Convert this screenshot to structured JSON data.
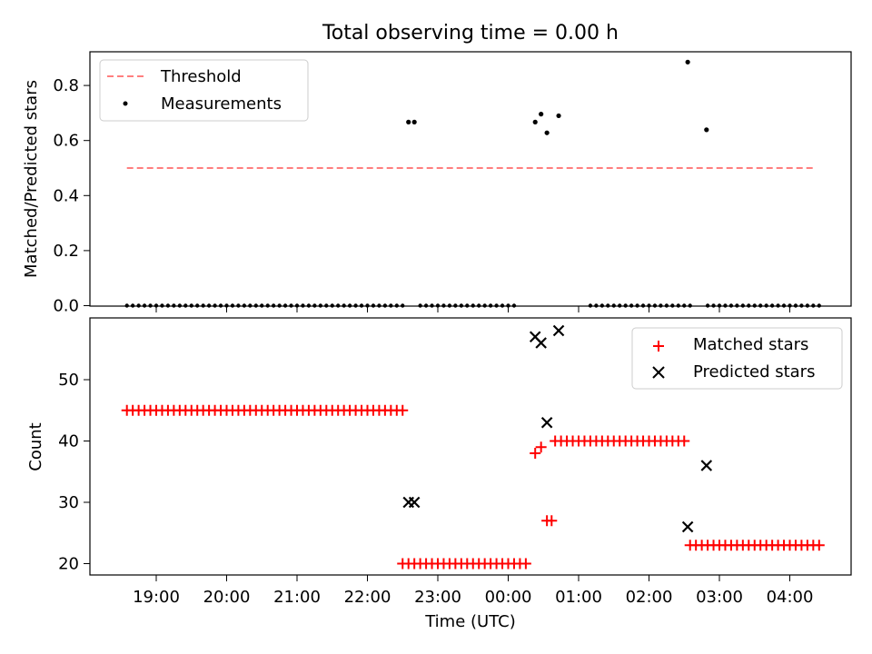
{
  "chart_data": [
    {
      "type": "scatter",
      "title": "Total observing time = 0.00 h",
      "xlabel": "",
      "ylabel": "Matched/Predicted stars",
      "ylim": [
        0,
        0.92
      ],
      "yticks": [
        0.0,
        0.2,
        0.4,
        0.6,
        0.8
      ],
      "ytick_labels": [
        "0.0",
        "0.2",
        "0.4",
        "0.6",
        "0.8"
      ],
      "legend_position": "top-left",
      "series": [
        {
          "name": "Threshold",
          "style": "dashed-line",
          "color": "#ff7f7f",
          "x": [
            "18:35",
            "04:20"
          ],
          "y": [
            0.5,
            0.5
          ]
        },
        {
          "name": "Measurements",
          "style": "dot",
          "color": "#000000",
          "zero_run_x": [
            "18:35",
            "22:30",
            "22:45",
            "00:05",
            "01:10",
            "02:35",
            "02:50",
            "04:25"
          ],
          "points": [
            {
              "x": "22:35",
              "y": 0.667
            },
            {
              "x": "22:40",
              "y": 0.667
            },
            {
              "x": "00:23",
              "y": 0.667
            },
            {
              "x": "00:28",
              "y": 0.696
            },
            {
              "x": "00:33",
              "y": 0.628
            },
            {
              "x": "00:43",
              "y": 0.69
            },
            {
              "x": "02:33",
              "y": 0.885
            },
            {
              "x": "02:49",
              "y": 0.639
            }
          ]
        }
      ]
    },
    {
      "type": "scatter",
      "xlabel": "Time (UTC)",
      "ylabel": "Count",
      "ylim": [
        18,
        60
      ],
      "yticks": [
        20,
        30,
        40,
        50
      ],
      "ytick_labels": [
        "20",
        "30",
        "40",
        "50"
      ],
      "xticks": [
        "19:00",
        "20:00",
        "21:00",
        "22:00",
        "23:00",
        "00:00",
        "01:00",
        "02:00",
        "03:00",
        "04:00"
      ],
      "legend_position": "top-right",
      "series": [
        {
          "name": "Matched stars",
          "marker": "+",
          "color": "#ff0000",
          "runs": [
            {
              "from": "18:35",
              "to": "22:30",
              "y": 45
            },
            {
              "from": "22:30",
              "to": "00:15",
              "y": 20
            },
            {
              "from": "00:40",
              "to": "02:30",
              "y": 40
            },
            {
              "from": "02:35",
              "to": "04:25",
              "y": 23
            }
          ],
          "points": [
            {
              "x": "00:23",
              "y": 38
            },
            {
              "x": "00:28",
              "y": 39
            },
            {
              "x": "00:33",
              "y": 27
            },
            {
              "x": "00:37",
              "y": 27
            }
          ]
        },
        {
          "name": "Predicted stars",
          "marker": "x",
          "color": "#000000",
          "points": [
            {
              "x": "22:35",
              "y": 30
            },
            {
              "x": "22:40",
              "y": 30
            },
            {
              "x": "00:23",
              "y": 57
            },
            {
              "x": "00:28",
              "y": 56
            },
            {
              "x": "00:33",
              "y": 43
            },
            {
              "x": "00:43",
              "y": 58
            },
            {
              "x": "02:33",
              "y": 26
            },
            {
              "x": "02:49",
              "y": 36
            }
          ]
        }
      ]
    }
  ]
}
